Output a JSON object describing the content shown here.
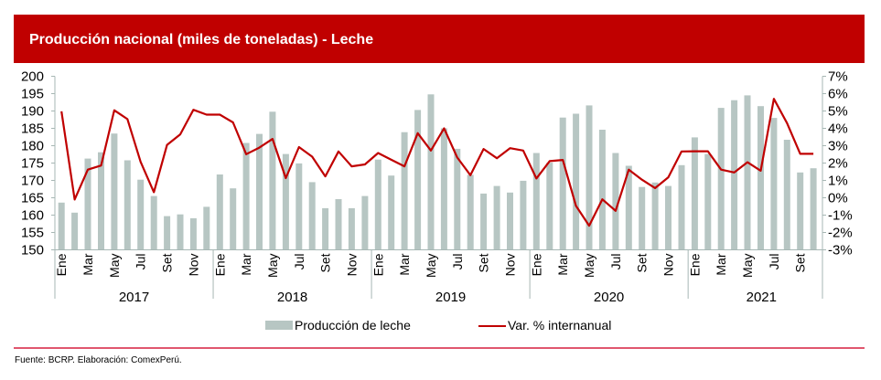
{
  "header": {
    "title": "Producción nacional (miles de toneladas) - Leche"
  },
  "footer": {
    "source": "Fuente: BCRP. Elaboración: ComexPerú."
  },
  "colors": {
    "title_bar": "#C00000",
    "bars": "#B7C6C3",
    "line": "#C00000",
    "axis": "#A7B7B4",
    "divider": "#E0566E"
  },
  "chart_data": {
    "type": "bar+line",
    "title": "Producción nacional (miles de toneladas) - Leche",
    "xlabel": "",
    "ylabel_left": "",
    "ylabel_right": "",
    "ylim_left": [
      150,
      200
    ],
    "ylim_right": [
      -3,
      7
    ],
    "left_ticks": [
      "150",
      "155",
      "160",
      "165",
      "170",
      "175",
      "180",
      "185",
      "190",
      "195",
      "200"
    ],
    "right_ticks": [
      "-3%",
      "-2%",
      "-1%",
      "0%",
      "1%",
      "2%",
      "3%",
      "4%",
      "5%",
      "6%",
      "7%"
    ],
    "grid": false,
    "legend_position": "bottom",
    "month_labels": [
      "Ene",
      "Mar",
      "May",
      "Jul",
      "Set",
      "Nov"
    ],
    "years": [
      {
        "label": "2017",
        "months": 12
      },
      {
        "label": "2018",
        "months": 12
      },
      {
        "label": "2019",
        "months": 12
      },
      {
        "label": "2020",
        "months": 12
      },
      {
        "label": "2021",
        "months": 10
      }
    ],
    "series": [
      {
        "name": "Producción de leche",
        "type": "bar",
        "axis": "left",
        "values": [
          163.6,
          160.7,
          176.3,
          178.1,
          183.5,
          175.8,
          170.2,
          165.5,
          159.7,
          160.2,
          159.1,
          162.4,
          171.7,
          167.7,
          180.8,
          183.4,
          189.8,
          177.6,
          174.9,
          169.5,
          162.0,
          164.6,
          162.0,
          165.5,
          176.0,
          171.4,
          183.9,
          190.3,
          194.8,
          185.0,
          179.1,
          171.6,
          166.2,
          168.4,
          166.5,
          169.9,
          177.9,
          175.1,
          188.1,
          189.2,
          191.6,
          184.6,
          177.9,
          174.2,
          168.1,
          169.4,
          168.4,
          174.4,
          182.4,
          177.6,
          190.9,
          193.1,
          194.5,
          191.4,
          188.0,
          181.7,
          172.3,
          173.5
        ]
      },
      {
        "name": "Var. % internanual",
        "type": "line",
        "axis": "right",
        "values": [
          4.98,
          -0.1,
          1.62,
          1.86,
          5.04,
          4.53,
          2.07,
          0.32,
          3.05,
          3.65,
          5.07,
          4.79,
          4.79,
          4.34,
          2.51,
          2.89,
          3.39,
          1.13,
          2.92,
          2.37,
          1.23,
          2.67,
          1.81,
          1.92,
          2.58,
          2.19,
          1.81,
          3.72,
          2.72,
          4.0,
          2.32,
          1.3,
          2.81,
          2.28,
          2.86,
          2.72,
          1.11,
          2.11,
          2.18,
          -0.47,
          -1.61,
          -0.09,
          -0.75,
          1.62,
          1.04,
          0.56,
          1.18,
          2.67,
          2.68,
          2.68,
          1.62,
          1.46,
          2.05,
          1.56,
          5.7,
          4.3,
          2.53,
          2.53
        ]
      }
    ]
  }
}
